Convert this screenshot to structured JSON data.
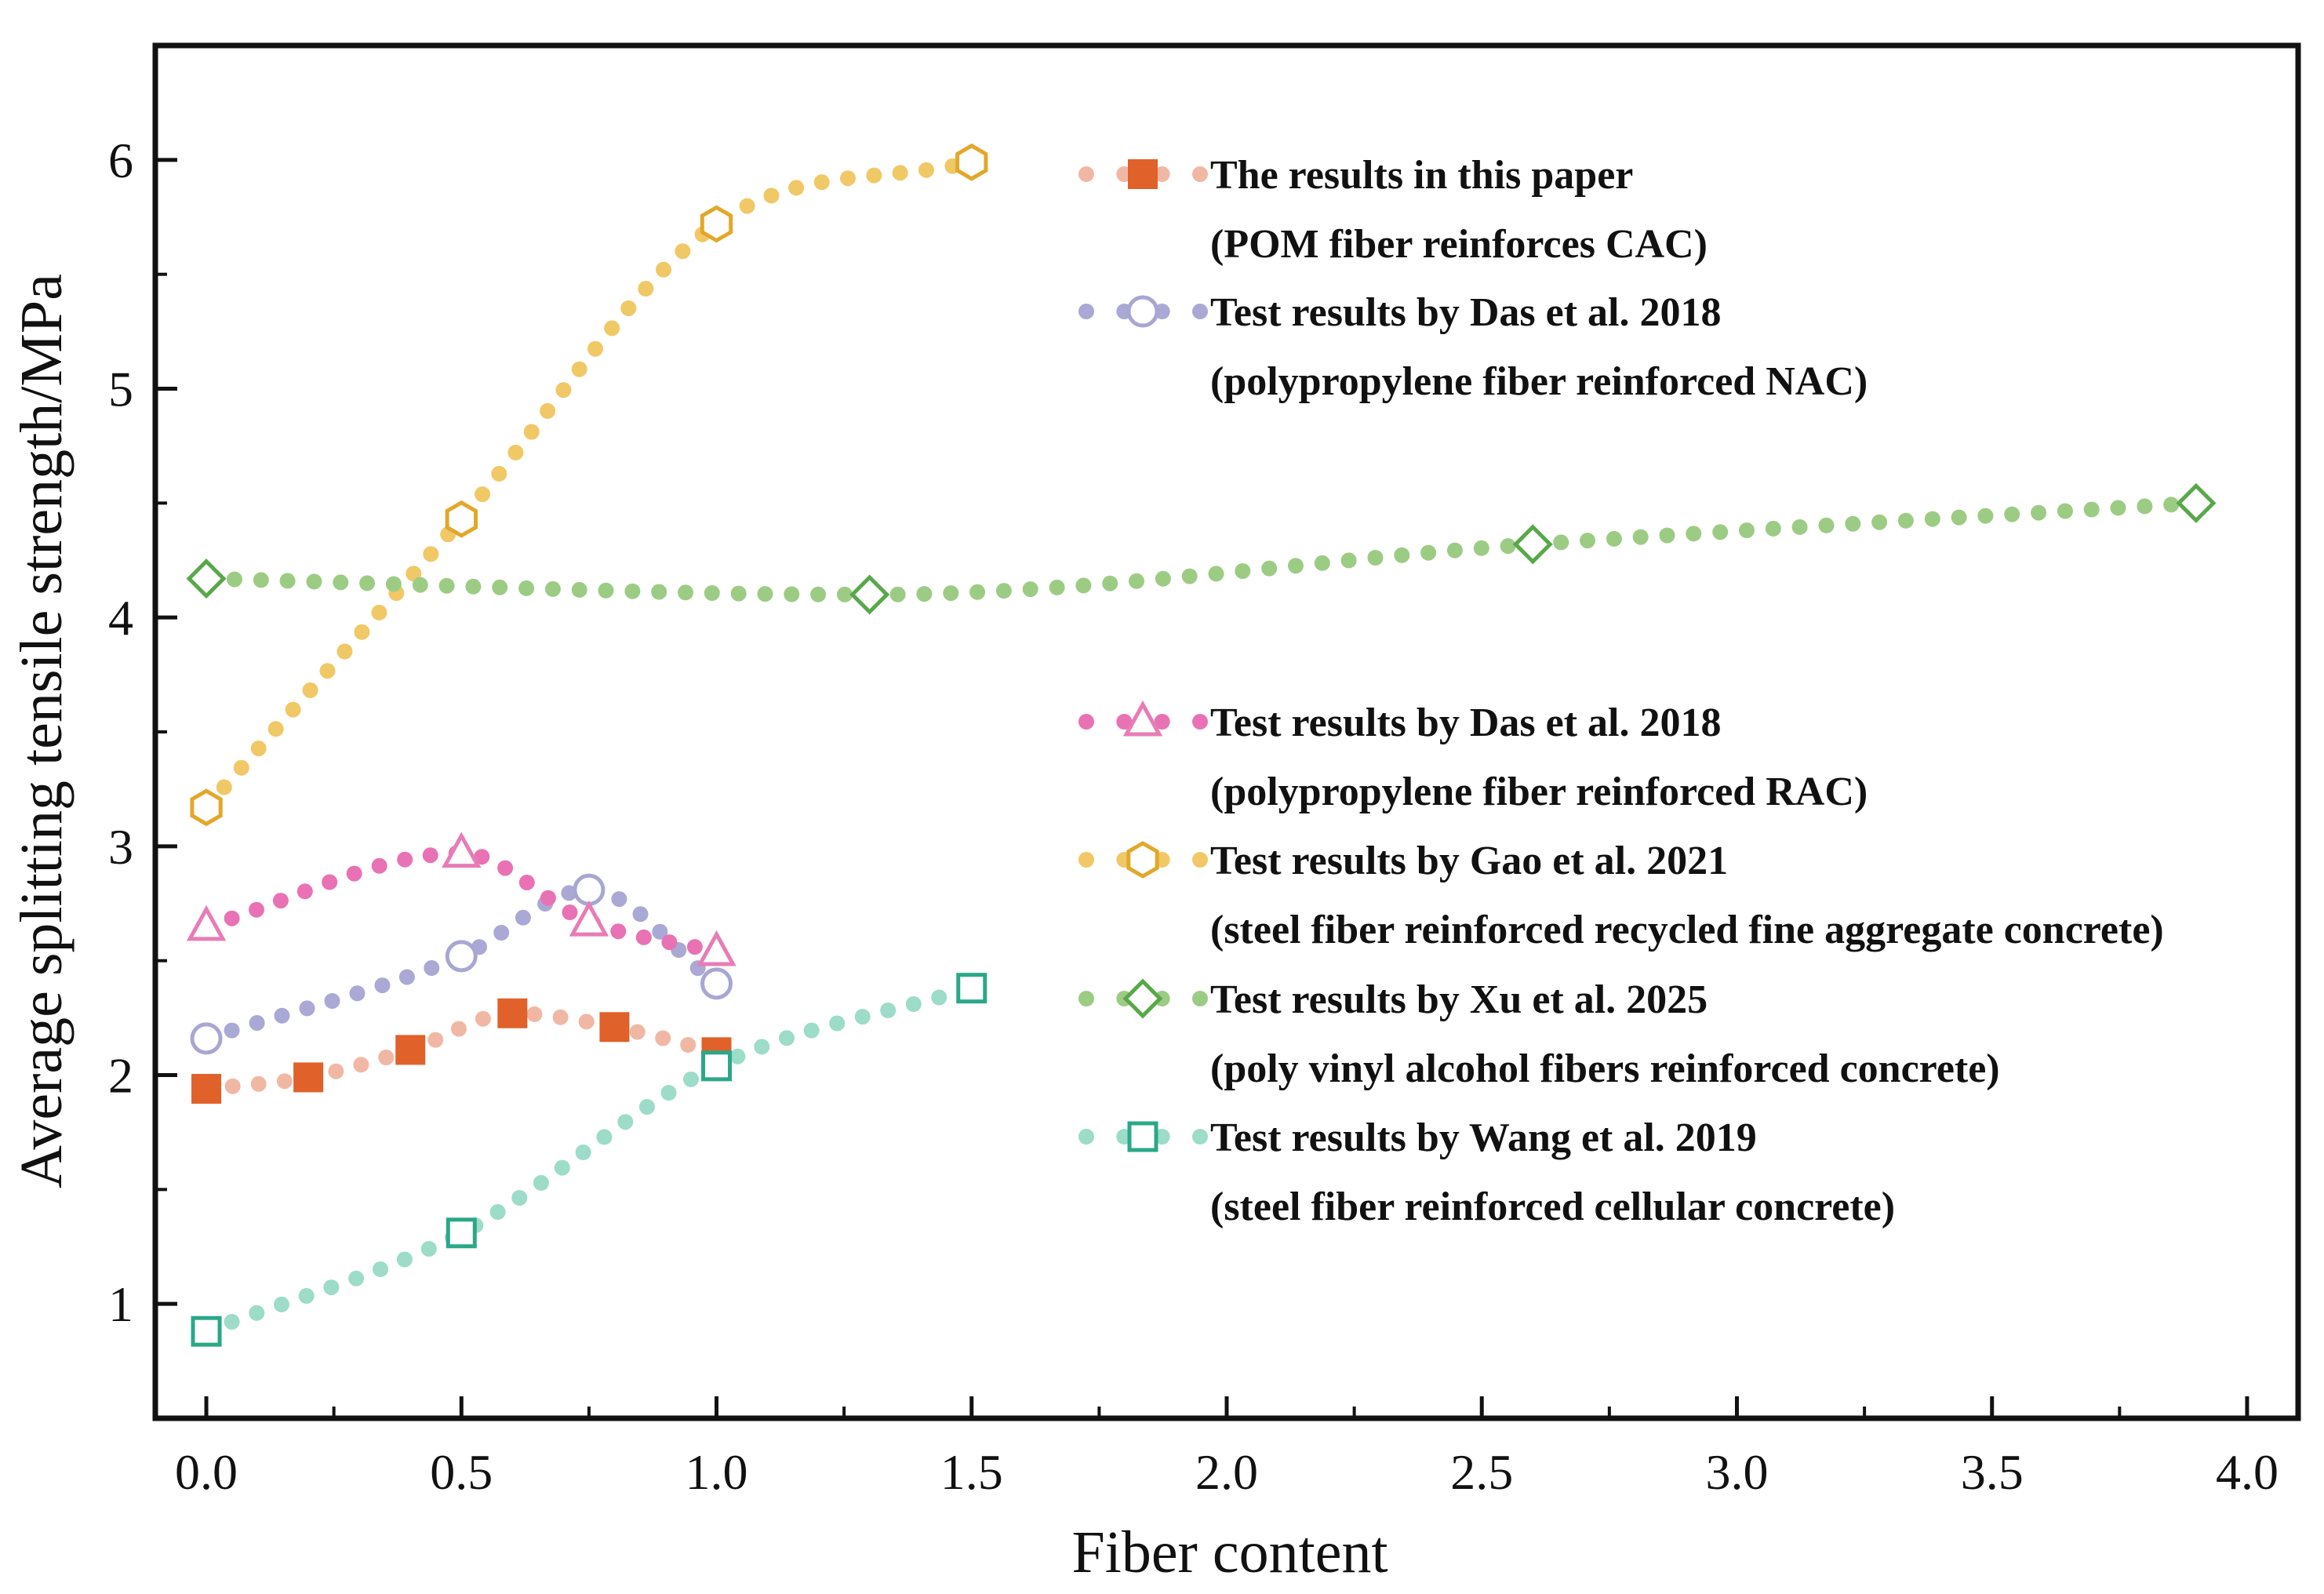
{
  "chart_data": {
    "type": "scatter",
    "xlabel": "Fiber content",
    "ylabel": "Average splitting tensile strength/MPa",
    "xlim": [
      -0.1,
      4.1
    ],
    "ylim": [
      0.5,
      6.5
    ],
    "xticks": [
      "0.0",
      "0.5",
      "1.0",
      "1.5",
      "2.0",
      "2.5",
      "3.0",
      "3.5",
      "4.0"
    ],
    "yticks": [
      "1",
      "2",
      "3",
      "4",
      "5",
      "6"
    ],
    "series": [
      {
        "key": "pom",
        "name": "The results in this paper",
        "subtitle": "(POM fiber reinforces CAC)",
        "marker": "square-filled",
        "marker_color": "#e0612a",
        "line_color": "#f0b8a4",
        "x": [
          0,
          0.2,
          0.4,
          0.6,
          0.8,
          1.0
        ],
        "y": [
          1.94,
          1.99,
          2.11,
          2.27,
          2.21,
          2.1
        ]
      },
      {
        "key": "das_nac",
        "name": "Test results by Das et al. 2018",
        "subtitle": "(polypropylene fiber reinforced NAC)",
        "marker": "circle-open",
        "marker_color": "#a8a6d2",
        "line_color": "#aaa8d4",
        "x": [
          0,
          0.5,
          0.75,
          1.0
        ],
        "y": [
          2.16,
          2.52,
          2.81,
          2.4
        ]
      },
      {
        "key": "das_rac",
        "name": "Test results by Das et al. 2018",
        "subtitle": "(polypropylene fiber reinforced RAC)",
        "marker": "triangle-open",
        "marker_color": "#e87cb6",
        "line_color": "#e872b4",
        "x": [
          0,
          0.5,
          0.75,
          1.0
        ],
        "y": [
          2.65,
          2.97,
          2.67,
          2.54
        ]
      },
      {
        "key": "gao",
        "name": "Test results by Gao et al. 2021",
        "subtitle": "(steel fiber reinforced recycled fine aggregate concrete)",
        "marker": "hexagon-open",
        "marker_color": "#e2a82a",
        "line_color": "#f0c866",
        "x": [
          0,
          0.5,
          1.0,
          1.5
        ],
        "y": [
          3.17,
          4.43,
          5.72,
          5.99
        ]
      },
      {
        "key": "xu",
        "name": "Test results by Xu et al. 2025",
        "subtitle": "(poly vinyl alcohol fibers reinforced concrete)",
        "marker": "diamond-open",
        "marker_color": "#58a84a",
        "line_color": "#9ccc84",
        "x": [
          0,
          1.3,
          2.6,
          3.9
        ],
        "y": [
          4.17,
          4.1,
          4.32,
          4.5
        ]
      },
      {
        "key": "wang",
        "name": "Test results by Wang et al. 2019",
        "subtitle": "(steel fiber reinforced cellular concrete)",
        "marker": "square-open",
        "marker_color": "#2aa888",
        "line_color": "#9cdcc8",
        "x": [
          0,
          0.5,
          1.0,
          1.5
        ],
        "y": [
          0.88,
          1.31,
          2.04,
          2.38
        ]
      }
    ]
  }
}
